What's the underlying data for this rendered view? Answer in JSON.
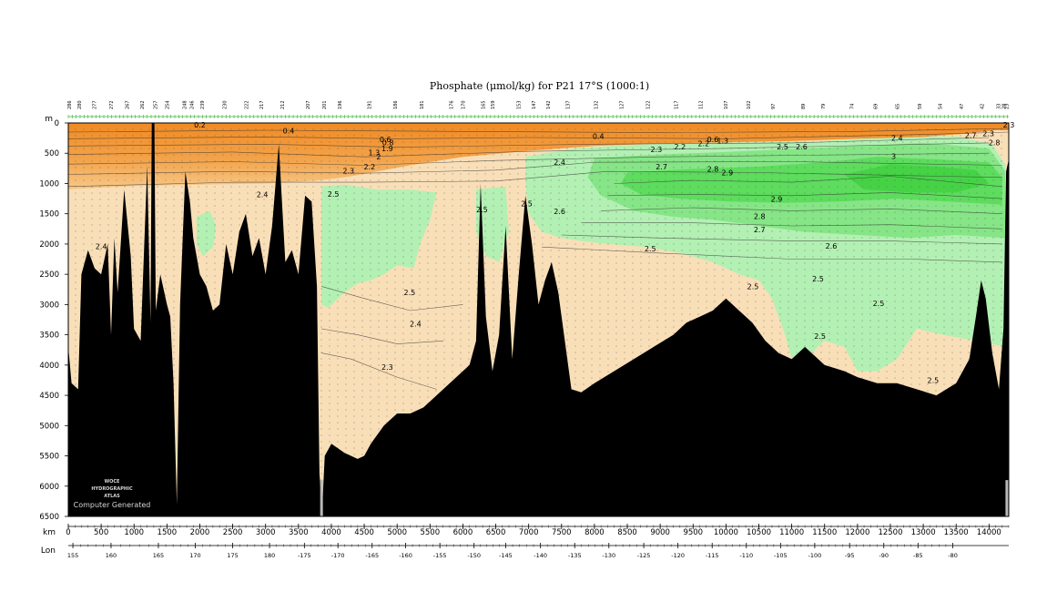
{
  "chart_data": {
    "type": "heatmap",
    "title": "Phosphate (μmol/kg) for P21 17°S (1000:1)",
    "ylabel": "m",
    "xlabel": "km",
    "x2label": "Lon",
    "ylim": [
      0,
      6500
    ],
    "xlim": [
      0,
      14300
    ],
    "y_ticks": [
      0,
      500,
      1000,
      1500,
      2000,
      2500,
      3000,
      3500,
      4000,
      4500,
      5000,
      5500,
      6000,
      6500
    ],
    "x_ticks": [
      0,
      500,
      1000,
      1500,
      2000,
      2500,
      3000,
      3500,
      4000,
      4500,
      5000,
      5500,
      6000,
      6500,
      7000,
      7500,
      8000,
      8500,
      9000,
      9500,
      10000,
      10500,
      11000,
      11500,
      12000,
      12500,
      13000,
      13500,
      14000
    ],
    "lon_ticks": [
      {
        "label": "155",
        "km": 70
      },
      {
        "label": "160",
        "km": 650
      },
      {
        "label": "165",
        "km": 1370
      },
      {
        "label": "170",
        "km": 1930
      },
      {
        "label": "175",
        "km": 2500
      },
      {
        "label": "180",
        "km": 3060
      },
      {
        "label": "-175",
        "km": 3590
      },
      {
        "label": "-170",
        "km": 4100
      },
      {
        "label": "-165",
        "km": 4620
      },
      {
        "label": "-160",
        "km": 5130
      },
      {
        "label": "-155",
        "km": 5650
      },
      {
        "label": "-150",
        "km": 6170
      },
      {
        "label": "-145",
        "km": 6650
      },
      {
        "label": "-140",
        "km": 7180
      },
      {
        "label": "-135",
        "km": 7700
      },
      {
        "label": "-130",
        "km": 8220
      },
      {
        "label": "-125",
        "km": 8750
      },
      {
        "label": "-120",
        "km": 9270
      },
      {
        "label": "-115",
        "km": 9790
      },
      {
        "label": "-110",
        "km": 10310
      },
      {
        "label": "-105",
        "km": 10830
      },
      {
        "label": "-100",
        "km": 11350
      },
      {
        "label": "-95",
        "km": 11880
      },
      {
        "label": "-90",
        "km": 12400
      },
      {
        "label": "-85",
        "km": 12920
      },
      {
        "label": "-80",
        "km": 13450
      }
    ],
    "station_ticks": [
      {
        "label": "286",
        "km": 20
      },
      {
        "label": "280",
        "km": 170
      },
      {
        "label": "277",
        "km": 400
      },
      {
        "label": "272",
        "km": 660
      },
      {
        "label": "267",
        "km": 900
      },
      {
        "label": "262",
        "km": 1130
      },
      {
        "label": "257",
        "km": 1330
      },
      {
        "label": "254",
        "km": 1510
      },
      {
        "label": "248",
        "km": 1770
      },
      {
        "label": "246",
        "km": 1880
      },
      {
        "label": "239",
        "km": 2040
      },
      {
        "label": "230",
        "km": 2380
      },
      {
        "label": "222",
        "km": 2710
      },
      {
        "label": "217",
        "km": 2940
      },
      {
        "label": "212",
        "km": 3260
      },
      {
        "label": "207",
        "km": 3650
      },
      {
        "label": "201",
        "km": 3900
      },
      {
        "label": "196",
        "km": 4130
      },
      {
        "label": "191",
        "km": 4580
      },
      {
        "label": "186",
        "km": 4980
      },
      {
        "label": "181",
        "km": 5380
      },
      {
        "label": "176",
        "km": 5830
      },
      {
        "label": "170",
        "km": 6010
      },
      {
        "label": "165",
        "km": 6310
      },
      {
        "label": "159",
        "km": 6460
      },
      {
        "label": "153",
        "km": 6850
      },
      {
        "label": "147",
        "km": 7080
      },
      {
        "label": "142",
        "km": 7300
      },
      {
        "label": "137",
        "km": 7600
      },
      {
        "label": "132",
        "km": 8030
      },
      {
        "label": "127",
        "km": 8420
      },
      {
        "label": "122",
        "km": 8820
      },
      {
        "label": "117",
        "km": 9250
      },
      {
        "label": "112",
        "km": 9620
      },
      {
        "label": "107",
        "km": 10000
      },
      {
        "label": "102",
        "km": 10350
      },
      {
        "label": "97",
        "km": 10720
      },
      {
        "label": "89",
        "km": 11180
      },
      {
        "label": "79",
        "km": 11480
      },
      {
        "label": "74",
        "km": 11920
      },
      {
        "label": "69",
        "km": 12280
      },
      {
        "label": "65",
        "km": 12610
      },
      {
        "label": "59",
        "km": 12950
      },
      {
        "label": "54",
        "km": 13260
      },
      {
        "label": "47",
        "km": 13590
      },
      {
        "label": "42",
        "km": 13900
      },
      {
        "label": "33",
        "km": 14150
      },
      {
        "label": "28",
        "km": 14230
      },
      {
        "label": "23",
        "km": 14270
      }
    ],
    "contour_labels": [
      {
        "text": "0.2",
        "km": 2000,
        "depth": 30
      },
      {
        "text": "0.4",
        "km": 3350,
        "depth": 130
      },
      {
        "text": "0.6",
        "km": 4820,
        "depth": 270
      },
      {
        "text": "0.8",
        "km": 4860,
        "depth": 320
      },
      {
        "text": "1.3",
        "km": 4650,
        "depth": 490
      },
      {
        "text": "2",
        "km": 4720,
        "depth": 560
      },
      {
        "text": "1.9",
        "km": 4850,
        "depth": 420
      },
      {
        "text": "2.2",
        "km": 4580,
        "depth": 720
      },
      {
        "text": "2.3",
        "km": 4260,
        "depth": 790
      },
      {
        "text": "2.4",
        "km": 2950,
        "depth": 1180
      },
      {
        "text": "2.5",
        "km": 4030,
        "depth": 1170
      },
      {
        "text": "2.4",
        "km": 500,
        "depth": 2040
      },
      {
        "text": "2.5",
        "km": 5190,
        "depth": 2800
      },
      {
        "text": "2.4",
        "km": 5280,
        "depth": 3320
      },
      {
        "text": "2.3",
        "km": 4850,
        "depth": 4030
      },
      {
        "text": "2.5",
        "km": 6290,
        "depth": 1430
      },
      {
        "text": "2.5",
        "km": 6970,
        "depth": 1330
      },
      {
        "text": "2.6",
        "km": 7470,
        "depth": 1460
      },
      {
        "text": "2.4",
        "km": 7470,
        "depth": 650
      },
      {
        "text": "0.4",
        "km": 8060,
        "depth": 220
      },
      {
        "text": "2.3",
        "km": 8940,
        "depth": 440
      },
      {
        "text": "2.2",
        "km": 9300,
        "depth": 390
      },
      {
        "text": "2.2",
        "km": 9660,
        "depth": 340
      },
      {
        "text": "0.6",
        "km": 9800,
        "depth": 270
      },
      {
        "text": "1.3",
        "km": 9950,
        "depth": 290
      },
      {
        "text": "2.7",
        "km": 9020,
        "depth": 720
      },
      {
        "text": "2.8",
        "km": 9800,
        "depth": 760
      },
      {
        "text": "2.9",
        "km": 10020,
        "depth": 820
      },
      {
        "text": "2.9",
        "km": 10770,
        "depth": 1260
      },
      {
        "text": "2.8",
        "km": 10510,
        "depth": 1540
      },
      {
        "text": "2.7",
        "km": 10510,
        "depth": 1760
      },
      {
        "text": "2.5",
        "km": 8850,
        "depth": 2080
      },
      {
        "text": "2.6",
        "km": 11600,
        "depth": 2030
      },
      {
        "text": "2.5",
        "km": 10410,
        "depth": 2700
      },
      {
        "text": "2.5",
        "km": 11400,
        "depth": 2570
      },
      {
        "text": "2.5",
        "km": 12320,
        "depth": 2980
      },
      {
        "text": "2.5",
        "km": 11430,
        "depth": 3520
      },
      {
        "text": "2.5",
        "km": 13150,
        "depth": 4250
      },
      {
        "text": "2.5",
        "km": 10860,
        "depth": 390
      },
      {
        "text": "2.6",
        "km": 11150,
        "depth": 390
      },
      {
        "text": "2.4",
        "km": 12600,
        "depth": 250
      },
      {
        "text": "3",
        "km": 12550,
        "depth": 550
      },
      {
        "text": "2.7",
        "km": 13720,
        "depth": 200
      },
      {
        "text": "2.3",
        "km": 13990,
        "depth": 170
      },
      {
        "text": "2.8",
        "km": 14080,
        "depth": 320
      },
      {
        "text": "2.3",
        "km": 14300,
        "depth": 30
      }
    ],
    "color_scale": [
      {
        "value": 0.4,
        "color": "#f2922d"
      },
      {
        "value": 2.4,
        "color": "#f9dfb8"
      },
      {
        "value": 2.5,
        "color": "#b3f0b3"
      },
      {
        "value": 2.7,
        "color": "#86e586"
      },
      {
        "value": 2.9,
        "color": "#5ddc5d"
      },
      {
        "value": 3.0,
        "color": "#45d345"
      }
    ],
    "seafloor_color": "#000000",
    "watermark": {
      "line1": "WOCE",
      "line2": "HYDROGRAPHIC",
      "line3": "ATLAS",
      "line4": "Computer Generated"
    }
  }
}
